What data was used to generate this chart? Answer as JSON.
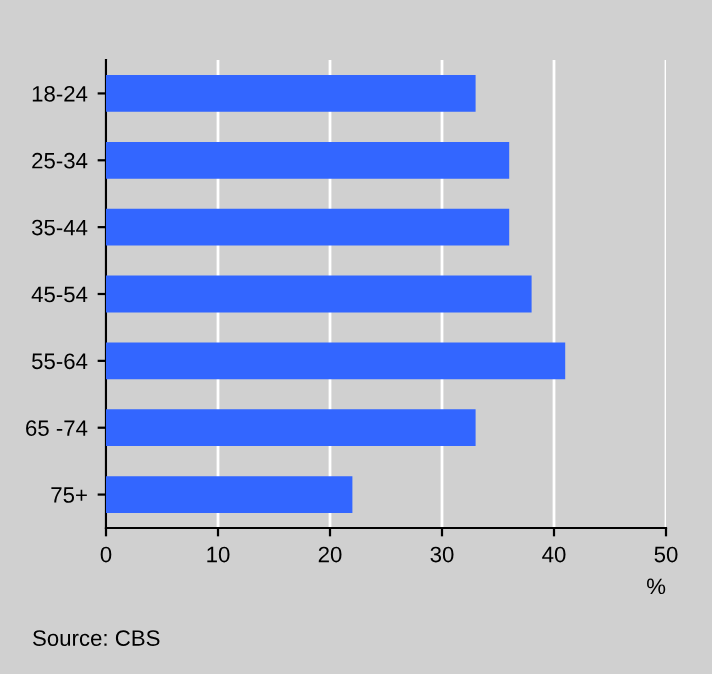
{
  "chart_data": {
    "type": "bar",
    "orientation": "horizontal",
    "categories": [
      "18-24",
      "25-34",
      "35-44",
      "45-54",
      "55-64",
      "65 -74",
      "75+"
    ],
    "values": [
      33,
      36,
      36,
      38,
      41,
      33,
      22
    ],
    "color": "#3366ff",
    "xlim": [
      0,
      50
    ],
    "xticks": [
      0,
      10,
      20,
      30,
      40,
      50
    ],
    "xlabel": "%",
    "grid": "x",
    "legend": false,
    "annotations": [
      "Source: CBS"
    ]
  }
}
